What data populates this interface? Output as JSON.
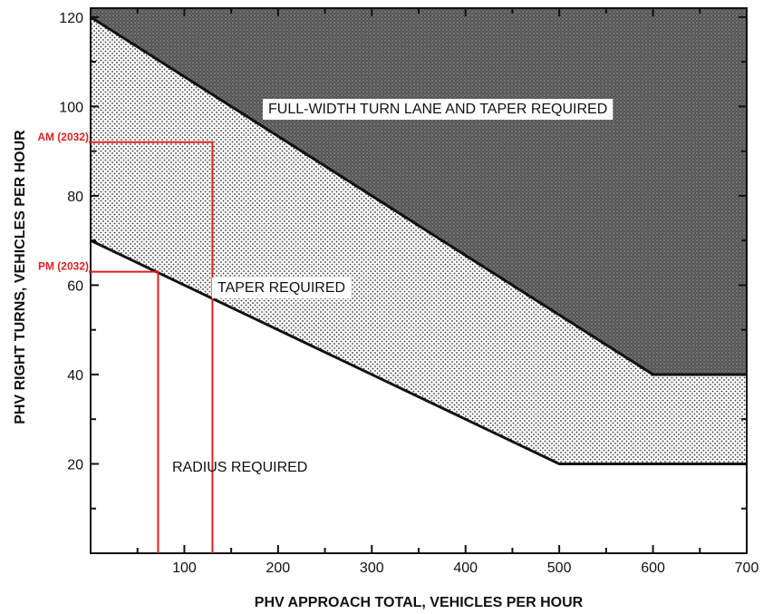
{
  "chart_data": {
    "type": "area",
    "xlabel": "PHV APPROACH TOTAL, VEHICLES PER HOUR",
    "ylabel": "PHV RIGHT TURNS, VEHICLES PER HOUR",
    "xlim": [
      0,
      700
    ],
    "ylim": [
      0,
      122
    ],
    "x_ticks": [
      100,
      200,
      300,
      400,
      500,
      600,
      700
    ],
    "y_ticks": [
      20,
      40,
      60,
      80,
      100,
      120
    ],
    "boundaries": [
      {
        "points": [
          [
            0,
            70
          ],
          [
            500,
            20
          ],
          [
            700,
            20
          ]
        ]
      },
      {
        "points": [
          [
            0,
            120
          ],
          [
            600,
            40
          ],
          [
            700,
            40
          ]
        ]
      }
    ],
    "regions": [
      {
        "label": "FULL-WIDTH TURN LANE AND TAPER REQUIRED",
        "fill": "dark-stipple"
      },
      {
        "label": "TAPER REQUIRED",
        "fill": "light-stipple"
      },
      {
        "label": "RADIUS REQUIRED",
        "fill": "none"
      }
    ],
    "markers": [
      {
        "label": "AM (2032)",
        "x": 130,
        "y": 92
      },
      {
        "label": "PM (2032)",
        "x": 72,
        "y": 63
      }
    ],
    "marker_color": "#e02020",
    "grid": false
  }
}
